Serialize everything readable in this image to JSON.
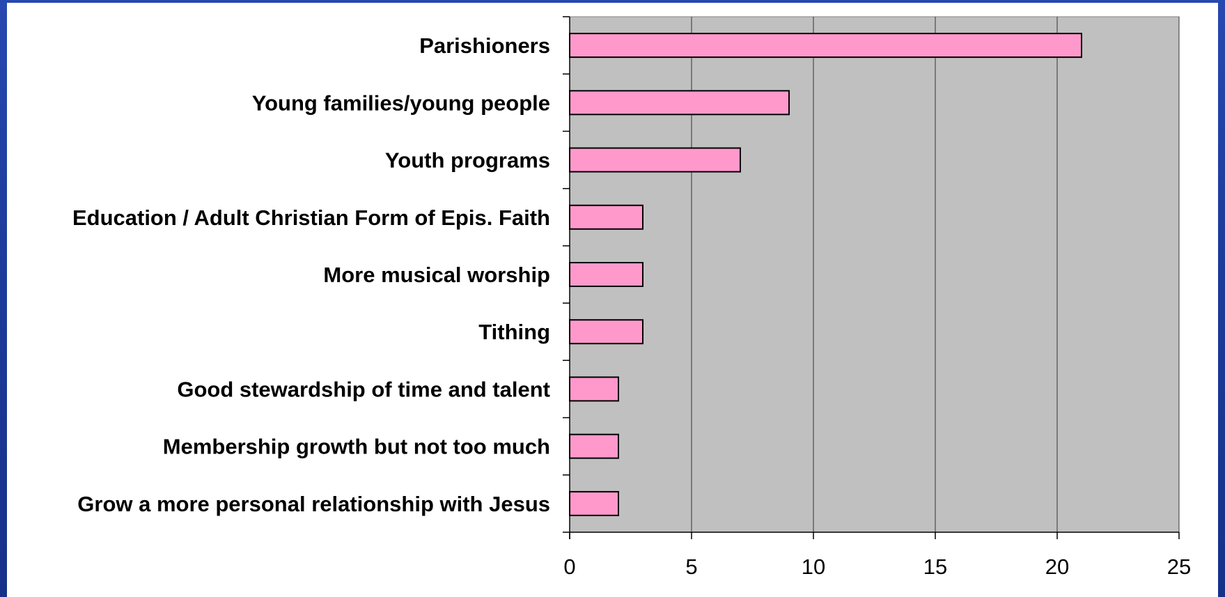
{
  "colors": {
    "slide_background": "#1f3f9a",
    "panel_background": "#ffffff",
    "plot_area": "#c0c0c0",
    "bar_fill": "#ff99cc",
    "bar_stroke": "#000000",
    "gridline": "#333333"
  },
  "chart_data": {
    "type": "bar",
    "orientation": "horizontal",
    "categories": [
      "Parishioners",
      "Young families/young people",
      "Youth programs",
      "Education / Adult Christian Form of Epis. Faith",
      "More musical worship",
      "Tithing",
      "Good stewardship of time and talent",
      "Membership growth but not too much",
      "Grow a more personal relationship with Jesus"
    ],
    "values": [
      21,
      9,
      7,
      3,
      3,
      3,
      2,
      2,
      2
    ],
    "xlim": [
      0,
      25
    ],
    "xticks": [
      0,
      5,
      10,
      15,
      20,
      25
    ],
    "grid": true,
    "legend": "none",
    "title": "",
    "xlabel": "",
    "ylabel": ""
  }
}
